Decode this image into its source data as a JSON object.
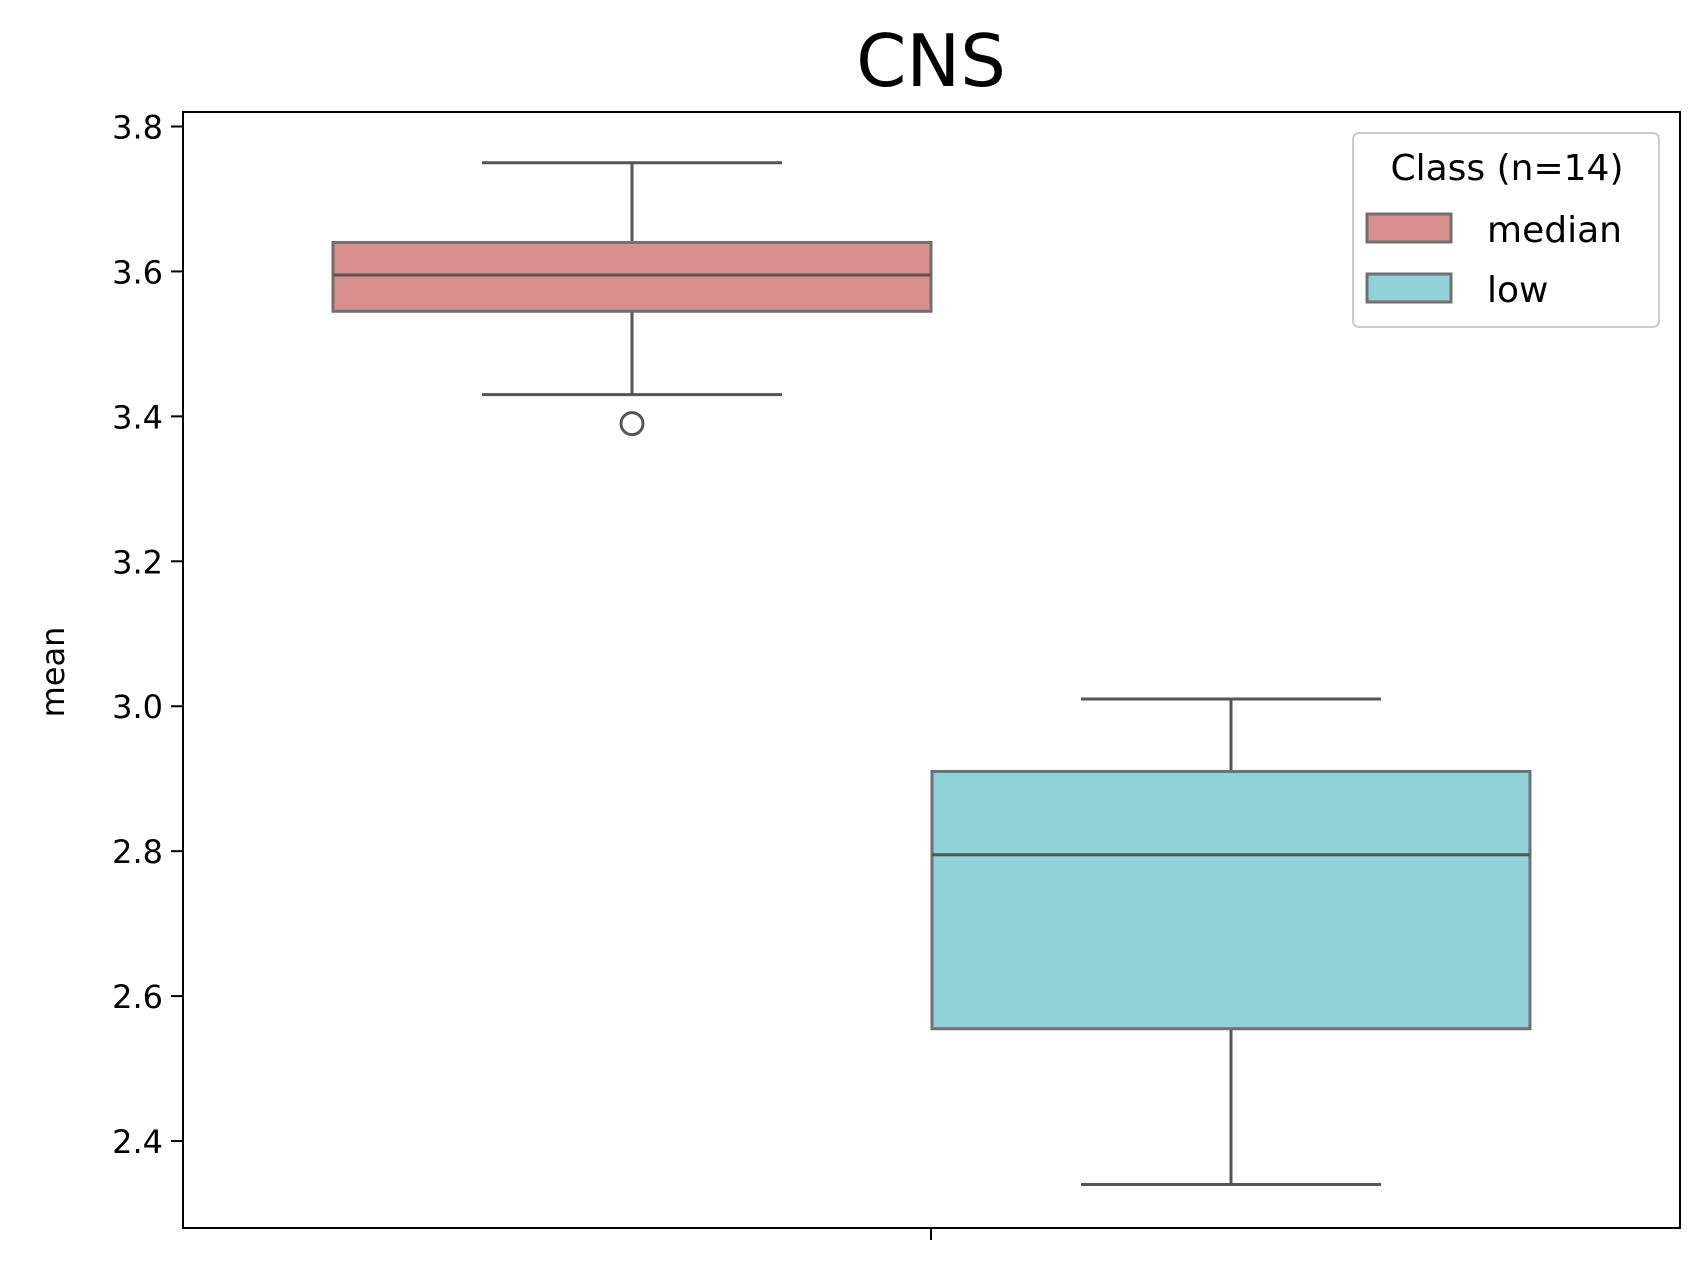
{
  "chart_data": {
    "type": "box",
    "title": "CNS",
    "xlabel": "",
    "ylabel": "mean",
    "ylim": [
      2.28,
      3.82
    ],
    "yticks": [
      2.4,
      2.6,
      2.8,
      3.0,
      3.2,
      3.4,
      3.6,
      3.8
    ],
    "ytick_labels": [
      "2.4",
      "2.6",
      "2.8",
      "3.0",
      "3.2",
      "3.4",
      "3.6",
      "3.8"
    ],
    "grid": false,
    "legend": {
      "title": "Class (n=14)",
      "placement": "top-right"
    },
    "series": [
      {
        "name": "median",
        "color": "#d98f8c",
        "whisker_low": 3.43,
        "q1": 3.545,
        "median": 3.595,
        "q3": 3.64,
        "whisker_high": 3.75,
        "outliers": [
          3.39
        ]
      },
      {
        "name": "low",
        "color": "#8fd3d9",
        "whisker_low": 2.34,
        "q1": 2.555,
        "median": 2.795,
        "q3": 2.91,
        "whisker_high": 3.01,
        "outliers": []
      }
    ]
  }
}
